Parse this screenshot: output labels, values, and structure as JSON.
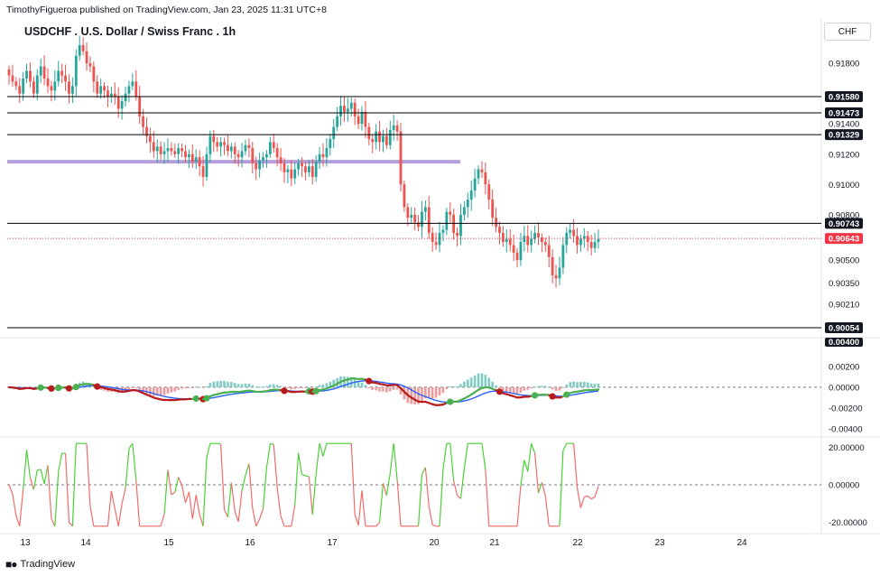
{
  "header": {
    "attribution": "TimothyFigueroa published on TradingView.com, Jan 23, 2025 11:31 UTC+8",
    "title": "USDCHF . U.S. Dollar / Swiss Franc . 1h",
    "currency": "CHF"
  },
  "footer": {
    "logo_text": "TradingView"
  },
  "colors": {
    "up": "#26a69a",
    "down": "#ef5350",
    "hline": "#000000",
    "zone": "#b39ddb",
    "current": "#f23645",
    "macd": "#2962ff",
    "signal_up": "#4caf50",
    "signal_down": "#b71c1c"
  },
  "chart_data": [
    {
      "type": "candlestick",
      "title": "USDCHF . U.S. Dollar / Swiss Franc . 1h",
      "x_ticks": [
        "13",
        "14",
        "15",
        "16",
        "17",
        "20",
        "21",
        "22",
        "23",
        "24"
      ],
      "y_ticks": [
        "0.91800",
        "0.91400",
        "0.91200",
        "0.91000",
        "0.90800",
        "0.90500",
        "0.90350",
        "0.90210"
      ],
      "ylim": [
        0.9,
        0.9195
      ],
      "horizontal_levels": [
        {
          "value": 0.9158,
          "label": "0.91580"
        },
        {
          "value": 0.91473,
          "label": "0.91473"
        },
        {
          "value": 0.91329,
          "label": "0.91329"
        },
        {
          "value": 0.90743,
          "label": "0.90743"
        },
        {
          "value": 0.90054,
          "label": "0.90054"
        }
      ],
      "current_price": {
        "value": 0.90643,
        "label": "0.90643"
      },
      "zone": {
        "value": 0.9115
      },
      "closes": [
        0.9172,
        0.9168,
        0.9165,
        0.916,
        0.917,
        0.9175,
        0.9168,
        0.916,
        0.9172,
        0.9178,
        0.917,
        0.9165,
        0.9162,
        0.9168,
        0.9175,
        0.9172,
        0.9168,
        0.916,
        0.9165,
        0.9185,
        0.9192,
        0.9188,
        0.918,
        0.9178,
        0.9168,
        0.916,
        0.9165,
        0.9162,
        0.9158,
        0.916,
        0.9158,
        0.915,
        0.9155,
        0.916,
        0.9165,
        0.9168,
        0.9158,
        0.9145,
        0.9138,
        0.9132,
        0.9128,
        0.9122,
        0.9125,
        0.912,
        0.9122,
        0.9124,
        0.9122,
        0.912,
        0.9124,
        0.9122,
        0.9118,
        0.912,
        0.9115,
        0.9118,
        0.9112,
        0.9105,
        0.912,
        0.9132,
        0.9128,
        0.9125,
        0.9128,
        0.9126,
        0.9122,
        0.9125,
        0.912,
        0.9118,
        0.9122,
        0.9126,
        0.9124,
        0.9114,
        0.911,
        0.9116,
        0.9118,
        0.912,
        0.9128,
        0.9124,
        0.9118,
        0.9114,
        0.9108,
        0.911,
        0.9104,
        0.911,
        0.9114,
        0.9112,
        0.9108,
        0.9112,
        0.9105,
        0.9115,
        0.912,
        0.9118,
        0.9124,
        0.913,
        0.9138,
        0.9145,
        0.9152,
        0.9148,
        0.915,
        0.9154,
        0.9145,
        0.914,
        0.9148,
        0.9138,
        0.913,
        0.9128,
        0.9135,
        0.9128,
        0.9132,
        0.9126,
        0.9136,
        0.9139,
        0.9135,
        0.91,
        0.9085,
        0.9078,
        0.908,
        0.9075,
        0.9072,
        0.9082,
        0.9085,
        0.9068,
        0.9062,
        0.906,
        0.9068,
        0.907,
        0.9082,
        0.908,
        0.9068,
        0.9066,
        0.908,
        0.9085,
        0.909,
        0.9096,
        0.9104,
        0.911,
        0.9108,
        0.91,
        0.909,
        0.9078,
        0.9072,
        0.9068,
        0.9062,
        0.9064,
        0.906,
        0.9055,
        0.905,
        0.9062,
        0.9066,
        0.906,
        0.9064,
        0.9068,
        0.9065,
        0.9062,
        0.906,
        0.9052,
        0.904,
        0.9038,
        0.9045,
        0.906,
        0.9068,
        0.907,
        0.9066,
        0.906,
        0.9064,
        0.9066,
        0.9062,
        0.9058,
        0.9062,
        0.9064
      ]
    },
    {
      "type": "line",
      "name": "macd",
      "y_ticks": [
        "0.00200",
        "0.00000",
        "-0.00200",
        "-0.00400"
      ],
      "ylim": [
        -0.0046,
        0.0045
      ],
      "tag": "0.00400"
    },
    {
      "type": "line",
      "name": "oscillator",
      "y_ticks": [
        "20.00000",
        "0.00000",
        "-20.00000"
      ],
      "ylim": [
        -24,
        24
      ]
    }
  ]
}
